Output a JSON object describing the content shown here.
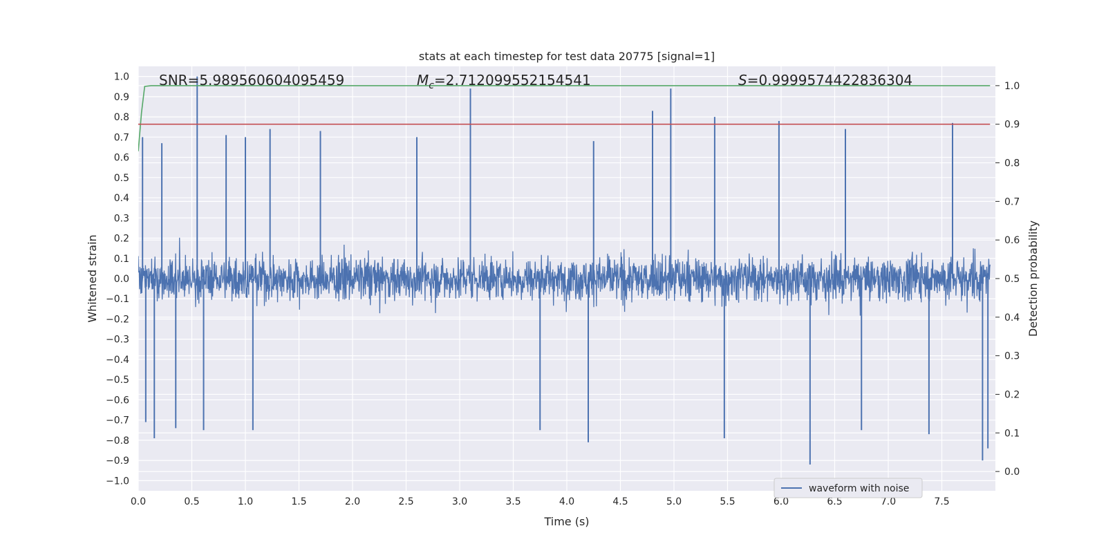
{
  "chart_data": {
    "type": "line",
    "title": "stats at each timestep for test data 20775 [signal=1]",
    "xlabel": "Time (s)",
    "ylabel_left": "Whitened strain",
    "ylabel_right": "Detection probability",
    "xlim": [
      0.0,
      8.0
    ],
    "ylim_left": [
      -1.05,
      1.05
    ],
    "ylim_right": [
      -0.05,
      1.05
    ],
    "xticks": [
      "0.0",
      "0.5",
      "1.0",
      "1.5",
      "2.0",
      "2.5",
      "3.0",
      "3.5",
      "4.0",
      "4.5",
      "5.0",
      "5.5",
      "6.0",
      "6.5",
      "7.0",
      "7.5"
    ],
    "yticks_left": [
      "1.0",
      "0.9",
      "0.8",
      "0.7",
      "0.6",
      "0.5",
      "0.4",
      "0.3",
      "0.2",
      "0.1",
      "0.0",
      "−0.1",
      "−0.2",
      "−0.3",
      "−0.4",
      "−0.5",
      "−0.6",
      "−0.7",
      "−0.8",
      "−0.9",
      "−1.0"
    ],
    "yticks_right": [
      "1.0",
      "0.9",
      "0.8",
      "0.7",
      "0.6",
      "0.5",
      "0.4",
      "0.3",
      "0.2",
      "0.1",
      "0.0"
    ],
    "grid": true,
    "legend": {
      "entries": [
        "waveform with noise"
      ],
      "placement": "lower-right"
    },
    "annotations": {
      "snr_label": "SNR=",
      "snr_value": "5.989560604095459",
      "mc_symbol": "M",
      "mc_sub": "c",
      "mc_value": "=2.712099552154541",
      "s_symbol": "S",
      "s_value": "=0.9999574422836304"
    },
    "series": [
      {
        "name": "waveform with noise",
        "axis": "left",
        "color": "#4c72b0",
        "kind": "noise",
        "duration": 7.95,
        "typical_envelope": 0.4,
        "spikes": [
          {
            "x": 0.04,
            "y": 0.7
          },
          {
            "x": 0.22,
            "y": 0.67
          },
          {
            "x": 0.55,
            "y": 1.0
          },
          {
            "x": 0.82,
            "y": 0.71
          },
          {
            "x": 1.0,
            "y": 0.7
          },
          {
            "x": 1.23,
            "y": 0.74
          },
          {
            "x": 1.7,
            "y": 0.73
          },
          {
            "x": 2.6,
            "y": 0.7
          },
          {
            "x": 3.1,
            "y": 0.94
          },
          {
            "x": 4.25,
            "y": 0.68
          },
          {
            "x": 4.8,
            "y": 0.83
          },
          {
            "x": 4.97,
            "y": 0.94
          },
          {
            "x": 5.38,
            "y": 0.8
          },
          {
            "x": 5.98,
            "y": 0.78
          },
          {
            "x": 6.6,
            "y": 0.74
          },
          {
            "x": 7.6,
            "y": 0.77
          },
          {
            "x": 0.07,
            "y": -0.71
          },
          {
            "x": 0.15,
            "y": -0.79
          },
          {
            "x": 0.35,
            "y": -0.74
          },
          {
            "x": 0.61,
            "y": -0.75
          },
          {
            "x": 1.07,
            "y": -0.75
          },
          {
            "x": 3.75,
            "y": -0.75
          },
          {
            "x": 4.2,
            "y": -0.81
          },
          {
            "x": 5.47,
            "y": -0.79
          },
          {
            "x": 6.27,
            "y": -0.92
          },
          {
            "x": 6.75,
            "y": -0.75
          },
          {
            "x": 7.38,
            "y": -0.77
          },
          {
            "x": 7.88,
            "y": -0.9
          },
          {
            "x": 7.93,
            "y": -0.84
          }
        ]
      },
      {
        "name": "",
        "axis": "right",
        "color": "#55a868",
        "kind": "detection-probability",
        "points": [
          [
            0.0,
            0.83
          ],
          [
            0.03,
            0.93
          ],
          [
            0.06,
            0.998
          ],
          [
            0.12,
            1.0
          ],
          [
            7.95,
            1.0
          ]
        ]
      },
      {
        "name": "",
        "axis": "right",
        "color": "#c44e52",
        "kind": "threshold",
        "value": 0.9
      }
    ]
  }
}
